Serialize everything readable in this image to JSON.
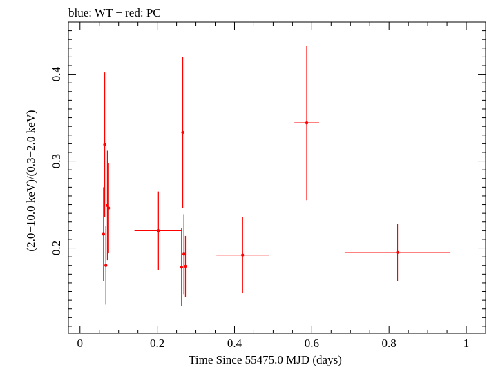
{
  "chart_data": {
    "type": "scatter",
    "title": "blue: WT − red: PC",
    "xlabel": "Time Since 55475.0 MJD (days)",
    "ylabel": "(2.0−10.0 keV)/(0.3−2.0 keV)",
    "xlim": [
      -0.03,
      1.05
    ],
    "ylim": [
      0.102,
      0.46
    ],
    "x_ticks": [
      0,
      0.2,
      0.4,
      0.6,
      0.8,
      1
    ],
    "x_tick_labels": [
      "0",
      "0.2",
      "0.4",
      "0.6",
      "0.8",
      "1"
    ],
    "y_ticks": [
      0.2,
      0.3,
      0.4
    ],
    "y_tick_labels": [
      "0.2",
      "0.3",
      "0.4"
    ],
    "grid": false,
    "series": [
      {
        "color": "#ff0000",
        "points": [
          {
            "x": 0.061,
            "y": 0.216,
            "xerr": 0.001,
            "yerr": 0.054
          },
          {
            "x": 0.064,
            "y": 0.319,
            "xerr": 0.001,
            "yerr": 0.083
          },
          {
            "x": 0.067,
            "y": 0.18,
            "xerr": 0.001,
            "yerr": 0.045
          },
          {
            "x": 0.071,
            "y": 0.249,
            "xerr": 0.001,
            "yerr": 0.063
          },
          {
            "x": 0.074,
            "y": 0.246,
            "xerr": 0.001,
            "yerr": 0.052
          },
          {
            "x": 0.203,
            "y": 0.22,
            "xerr": 0.062,
            "yerr": 0.045
          },
          {
            "x": 0.263,
            "y": 0.178,
            "xerr": 0.002,
            "yerr": 0.045
          },
          {
            "x": 0.266,
            "y": 0.333,
            "xerr": 0.001,
            "yerr": 0.087
          },
          {
            "x": 0.269,
            "y": 0.193,
            "xerr": 0.002,
            "yerr": 0.046
          },
          {
            "x": 0.273,
            "y": 0.179,
            "xerr": 0.002,
            "yerr": 0.035
          },
          {
            "x": 0.421,
            "y": 0.192,
            "xerr": 0.068,
            "yerr": 0.044
          },
          {
            "x": 0.587,
            "y": 0.344,
            "xerr": 0.032,
            "yerr": 0.089
          },
          {
            "x": 0.822,
            "y": 0.195,
            "xerr": 0.137,
            "yerr": 0.033
          }
        ]
      }
    ]
  }
}
